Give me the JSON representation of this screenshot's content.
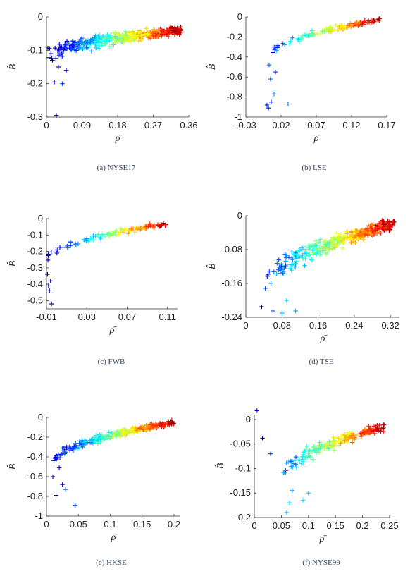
{
  "chart_data": [
    {
      "id": "a",
      "type": "scatter",
      "caption": "(a) NYSE17",
      "xlabel": "ρ̄",
      "ylabel": "B̂",
      "xlim": [
        0,
        0.36
      ],
      "ylim": [
        -0.3,
        0
      ],
      "xticks": [
        "0",
        "0.09",
        "0.18",
        "0.27",
        "0.36"
      ],
      "yticks": [
        "0",
        "-0.1",
        "-0.2",
        "-0.3"
      ],
      "cluster": {
        "x_min": 0.0,
        "x_max": 0.34,
        "y_start": -0.12,
        "y_end": -0.04,
        "spread": 0.035,
        "count": 420
      },
      "points": [
        [
          0.025,
          -0.295
        ],
        [
          0.04,
          -0.2
        ],
        [
          0.02,
          -0.195
        ],
        [
          0.03,
          -0.15
        ],
        [
          0.015,
          -0.13
        ],
        [
          0.05,
          -0.16
        ]
      ]
    },
    {
      "id": "b",
      "type": "scatter",
      "caption": "(b) LSE",
      "xlabel": "ρ̄",
      "ylabel": "B̂",
      "xlim": [
        -0.03,
        0.17
      ],
      "ylim": [
        -1,
        0
      ],
      "xticks": [
        "-0.03",
        "0.02",
        "0.07",
        "0.12",
        "0.17"
      ],
      "yticks": [
        "0",
        "-0.2",
        "-0.4",
        "-0.6",
        "-0.8",
        "-1"
      ],
      "cluster": {
        "x_min": 0.0,
        "x_max": 0.16,
        "y_start": -0.4,
        "y_end": -0.03,
        "spread": 0.06,
        "count": 130
      },
      "points": [
        [
          0.0,
          -0.88
        ],
        [
          0.002,
          -0.91
        ],
        [
          0.006,
          -0.85
        ],
        [
          0.03,
          -0.87
        ],
        [
          0.01,
          -0.77
        ],
        [
          0.005,
          -0.62
        ],
        [
          0.012,
          -0.55
        ],
        [
          0.003,
          -0.48
        ]
      ]
    },
    {
      "id": "c",
      "type": "scatter",
      "caption": "(c) FWB",
      "xlabel": "ρ̄",
      "ylabel": "B̂",
      "xlim": [
        -0.01,
        0.12
      ],
      "ylim": [
        -0.55,
        0
      ],
      "xticks": [
        "-0.01",
        "0.03",
        "0.07",
        "0.11"
      ],
      "yticks": [
        "0",
        "-0.1",
        "-0.2",
        "-0.3",
        "-0.4",
        "-0.5"
      ],
      "cluster": {
        "x_min": -0.01,
        "x_max": 0.11,
        "y_start": -0.25,
        "y_end": -0.03,
        "spread": 0.035,
        "count": 110
      },
      "points": [
        [
          -0.005,
          -0.52
        ],
        [
          -0.007,
          -0.44
        ],
        [
          -0.008,
          -0.41
        ],
        [
          -0.006,
          -0.38
        ],
        [
          -0.009,
          -0.34
        ]
      ]
    },
    {
      "id": "d",
      "type": "scatter",
      "caption": "(d) TSE",
      "xlabel": "ρ̄",
      "ylabel": "B̂",
      "xlim": [
        0,
        0.34
      ],
      "ylim": [
        -0.24,
        0
      ],
      "xticks": [
        "0",
        "0.08",
        "0.16",
        "0.24",
        "0.32"
      ],
      "yticks": [
        "0",
        "-0.08",
        "-0.16",
        "-0.24"
      ],
      "cluster": {
        "x_min": 0.04,
        "x_max": 0.33,
        "y_start": -0.17,
        "y_end": -0.02,
        "spread": 0.035,
        "count": 420
      },
      "points": [
        [
          0.035,
          -0.215
        ],
        [
          0.06,
          -0.225
        ],
        [
          0.08,
          -0.23
        ],
        [
          0.11,
          -0.225
        ],
        [
          0.09,
          -0.2
        ]
      ]
    },
    {
      "id": "e",
      "type": "scatter",
      "caption": "(e) HKSE",
      "xlabel": "ρ̄",
      "ylabel": "B̂",
      "xlim": [
        0,
        0.21
      ],
      "ylim": [
        -1,
        0
      ],
      "xticks": [
        "0",
        "0.05",
        "0.1",
        "0.15",
        "0.2"
      ],
      "yticks": [
        "0",
        "-0.2",
        "-0.4",
        "-0.6",
        "-0.8",
        "-1"
      ],
      "cluster": {
        "x_min": 0.01,
        "x_max": 0.2,
        "y_start": -0.45,
        "y_end": -0.05,
        "spread": 0.07,
        "count": 300
      },
      "points": [
        [
          0.045,
          -0.89
        ],
        [
          0.015,
          -0.79
        ],
        [
          0.01,
          -0.6
        ],
        [
          0.03,
          -0.73
        ],
        [
          0.025,
          -0.68
        ],
        [
          0.02,
          -0.51
        ]
      ]
    },
    {
      "id": "f",
      "type": "scatter",
      "caption": "(f) NYSE99",
      "xlabel": "ρ̄",
      "ylabel": "B̂",
      "xlim": [
        0,
        0.25
      ],
      "ylim": [
        -0.2,
        0.01
      ],
      "xticks": [
        "0",
        "0.05",
        "0.1",
        "0.15",
        "0.2",
        "0.25"
      ],
      "yticks": [
        "0",
        "-0.05",
        "-0.1",
        "-0.15",
        "-0.2"
      ],
      "cluster": {
        "x_min": 0.05,
        "x_max": 0.24,
        "y_start": -0.12,
        "y_end": -0.015,
        "spread": 0.025,
        "count": 200
      },
      "points": [
        [
          0.005,
          0.018
        ],
        [
          0.015,
          -0.038
        ],
        [
          0.03,
          -0.07
        ],
        [
          0.06,
          -0.19
        ],
        [
          0.065,
          -0.17
        ],
        [
          0.09,
          -0.165
        ],
        [
          0.07,
          -0.145
        ],
        [
          0.1,
          -0.15
        ]
      ]
    }
  ]
}
